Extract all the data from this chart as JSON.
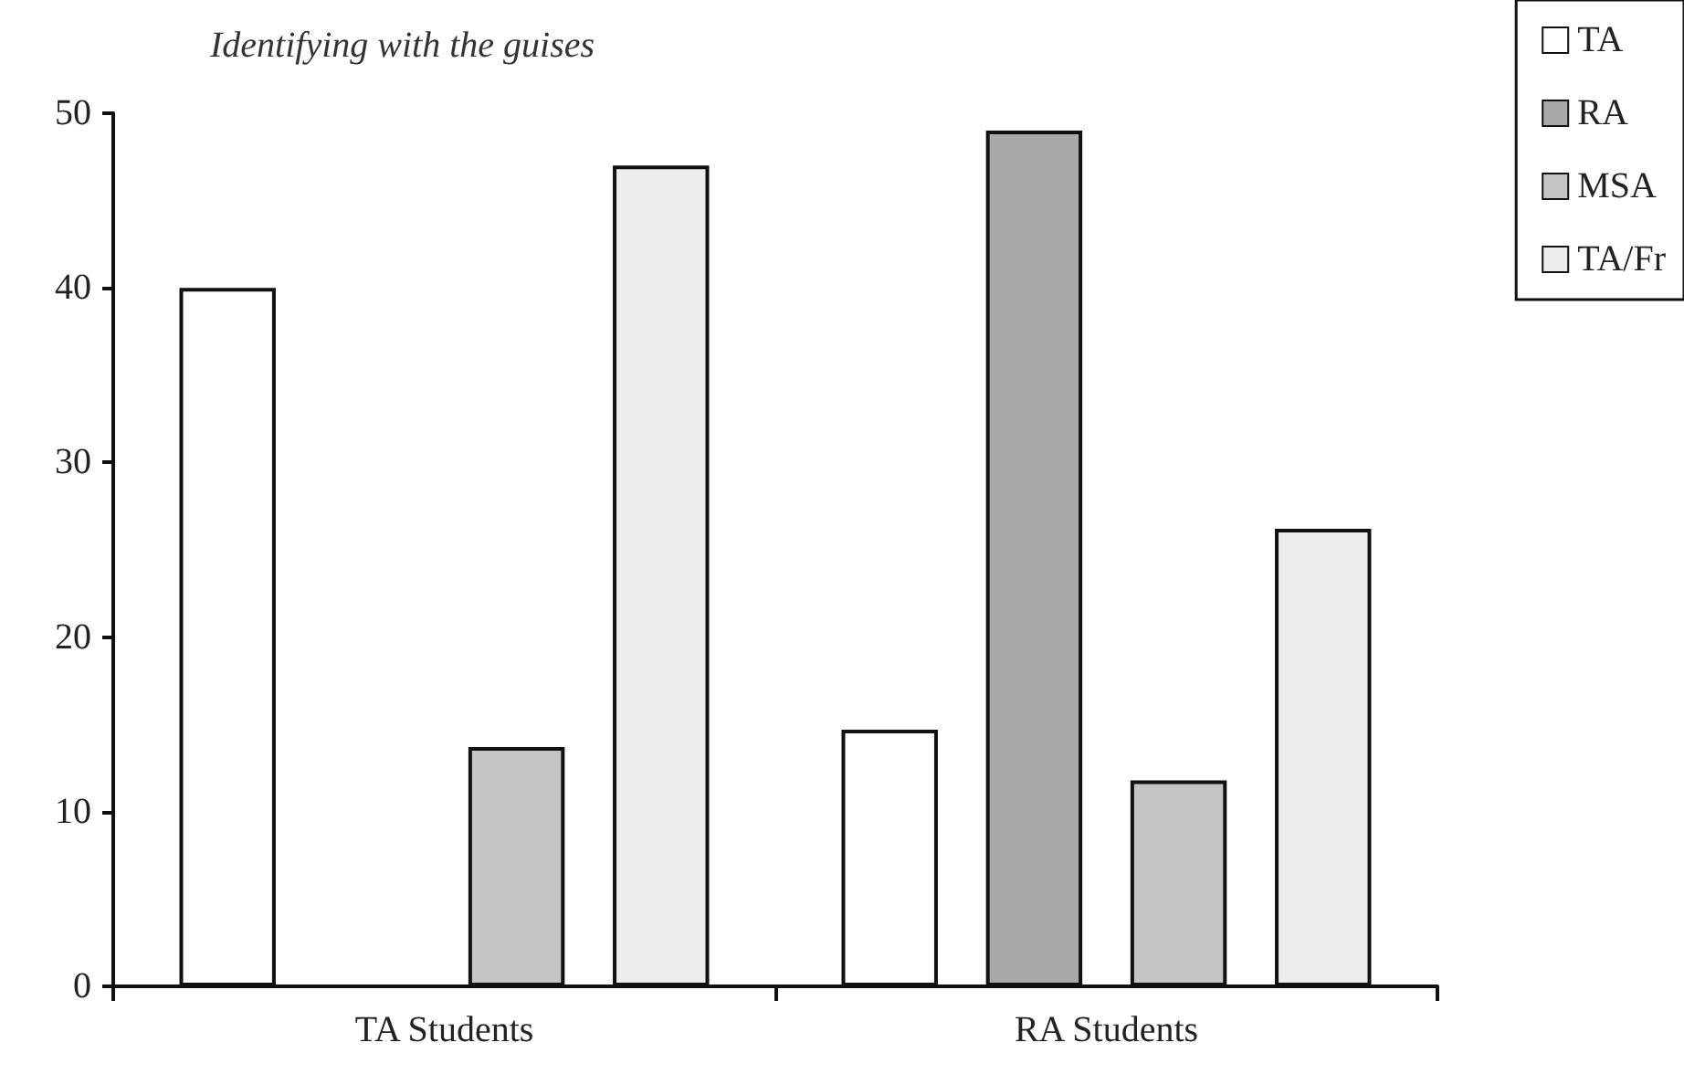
{
  "chart_data": {
    "type": "bar",
    "title": "Identifying with the guises",
    "categories": [
      "TA Students",
      "RA Students"
    ],
    "series": [
      {
        "name": "TA",
        "color": "#ffffff",
        "values": [
          40,
          14.7
        ]
      },
      {
        "name": "RA",
        "color": "#a9a9a9",
        "values": [
          null,
          49
        ]
      },
      {
        "name": "MSA",
        "color": "#c4c4c4",
        "values": [
          13.7,
          11.8
        ]
      },
      {
        "name": "TA/Fr",
        "color": "#ececec",
        "values": [
          47,
          26.2
        ]
      }
    ],
    "ylim": [
      0,
      50
    ],
    "yticks": [
      0,
      10,
      20,
      30,
      40,
      50
    ],
    "grid": false,
    "legend": "top right"
  }
}
